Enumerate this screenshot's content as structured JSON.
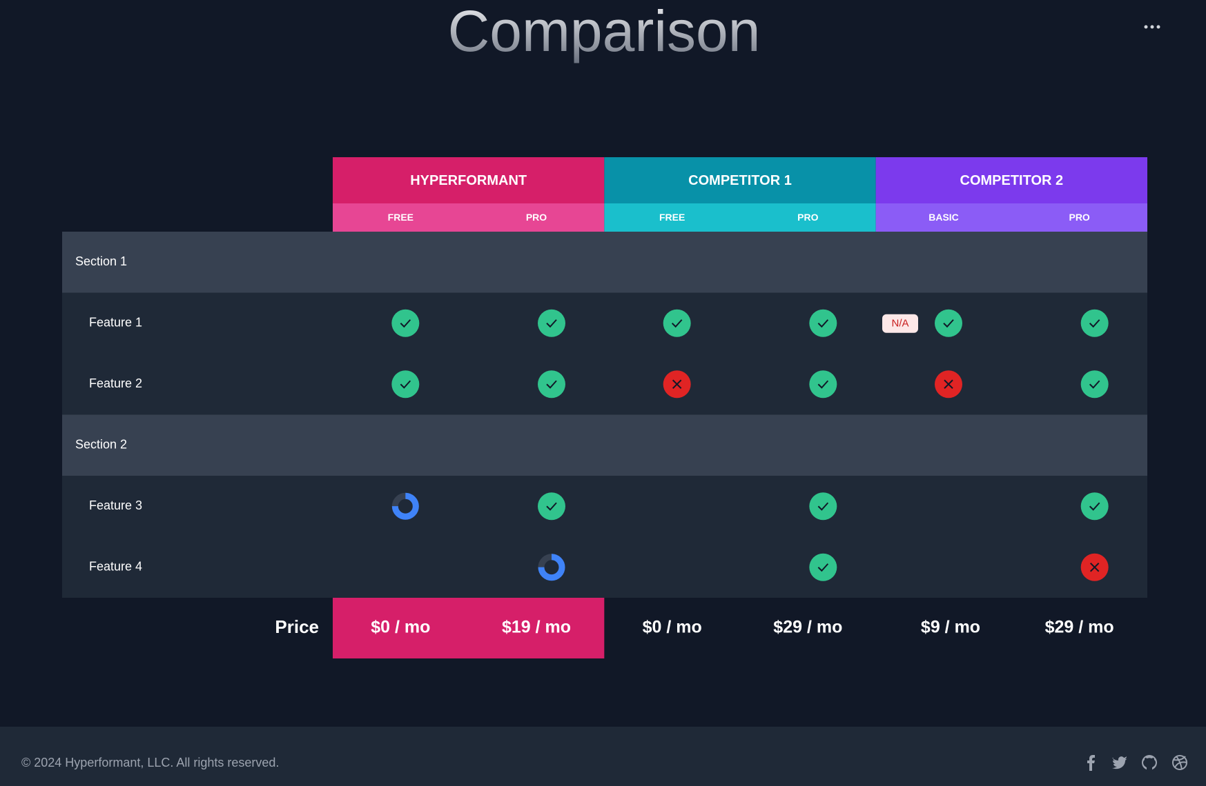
{
  "header": {
    "title": "Comparison"
  },
  "table": {
    "groups": [
      {
        "name": "HYPERFORMANT",
        "color": "#d61f69",
        "sub_color": "#e74694",
        "plans": [
          "FREE",
          "PRO"
        ]
      },
      {
        "name": "COMPETITOR 1",
        "color": "#0891a8",
        "sub_color": "#1abfcc",
        "plans": [
          "FREE",
          "PRO"
        ]
      },
      {
        "name": "COMPETITOR 2",
        "color": "#7c3aed",
        "sub_color": "#8b5cf6",
        "plans": [
          "BASIC",
          "PRO"
        ]
      }
    ],
    "sections": [
      {
        "name": "Section 1",
        "features": [
          {
            "name": "Feature 1",
            "cells": [
              "yes",
              "yes",
              "yes",
              "yes",
              {
                "state": "yes",
                "badge": "N/A"
              },
              "yes"
            ]
          },
          {
            "name": "Feature 2",
            "cells": [
              "yes",
              "yes",
              "no",
              "yes",
              "no",
              "yes"
            ]
          }
        ]
      },
      {
        "name": "Section 2",
        "features": [
          {
            "name": "Feature 3",
            "cells": [
              "partial",
              "yes",
              null,
              "yes",
              null,
              "yes"
            ]
          },
          {
            "name": "Feature 4",
            "cells": [
              null,
              "partial",
              null,
              "yes",
              null,
              "no"
            ]
          }
        ]
      }
    ],
    "price_label": "Price",
    "prices": [
      "$0 / mo",
      "$19 / mo",
      "$0 / mo",
      "$29 / mo",
      "$9 / mo",
      "$29 / mo"
    ]
  },
  "footer": {
    "copyright": "© 2024 Hyperformant, LLC. All rights reserved."
  }
}
